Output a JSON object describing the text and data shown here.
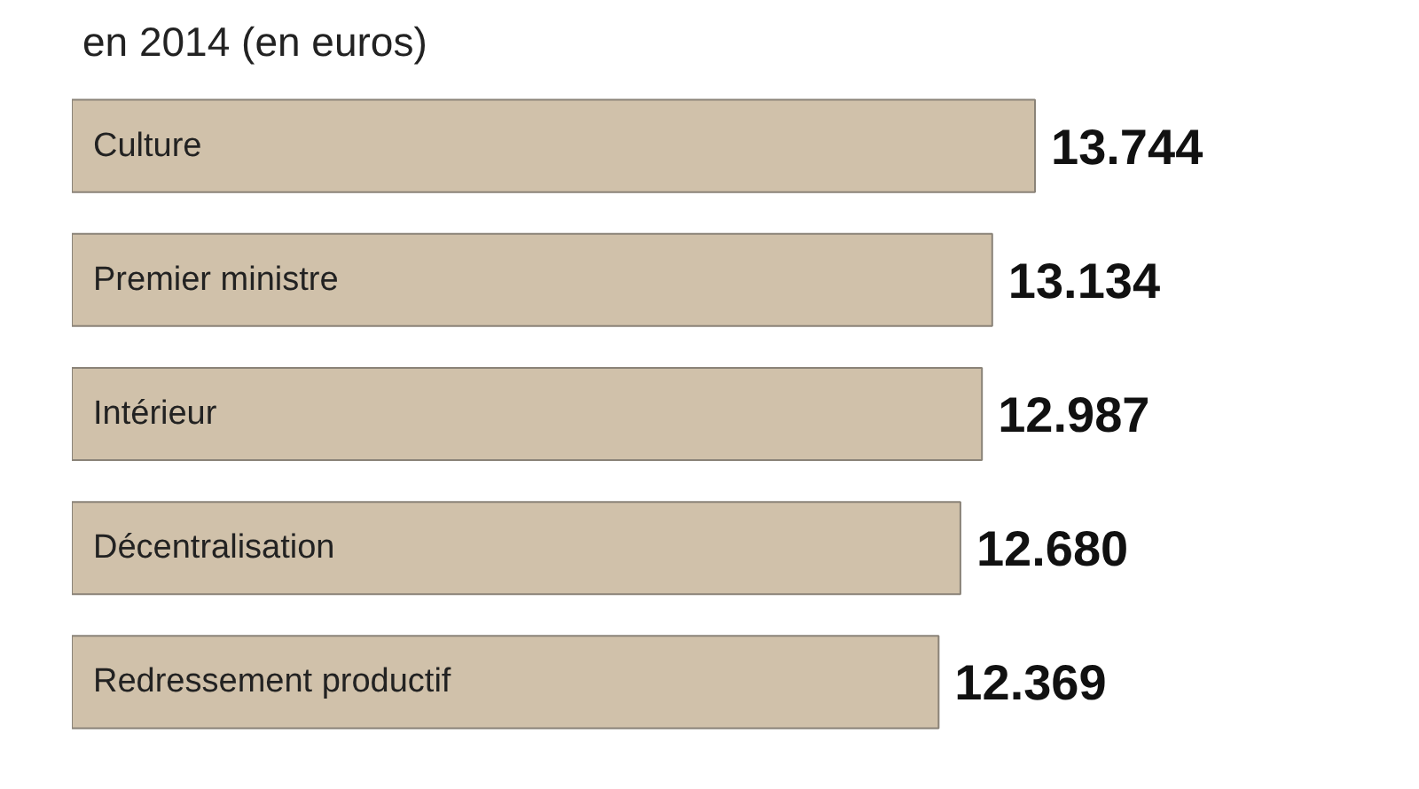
{
  "chart_data": {
    "type": "bar",
    "orientation": "horizontal",
    "title": "en 2014 (en euros)",
    "categories": [
      "Culture",
      "Premier ministre",
      "Intérieur",
      "Décentralisation",
      "Redressement productif"
    ],
    "values": [
      13744,
      13134,
      12987,
      12680,
      12369
    ],
    "value_labels": [
      "13.744",
      "13.134",
      "12.987",
      "12.680",
      "12.369"
    ],
    "color": "#d0c1aa"
  }
}
